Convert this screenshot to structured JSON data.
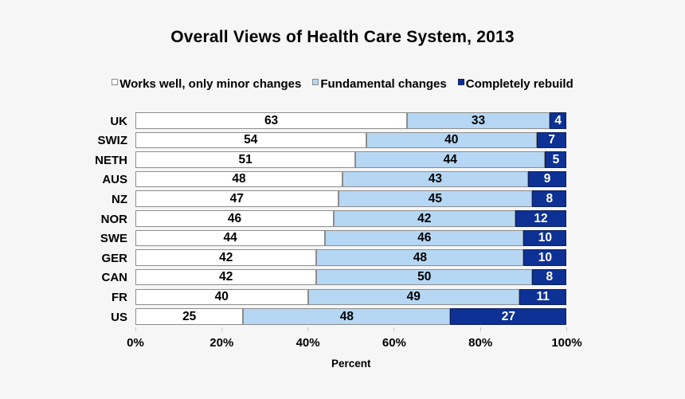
{
  "page": {
    "background_color": "#f6f6f6"
  },
  "chart_data": {
    "type": "bar",
    "stacked": true,
    "orientation": "horizontal",
    "title": "Overall Views of Health Care System, 2013",
    "xlabel": "Percent",
    "xlim": [
      0,
      100
    ],
    "x_ticks": [
      "0%",
      "20%",
      "40%",
      "60%",
      "80%",
      "100%"
    ],
    "grid": false,
    "legend_position": "top",
    "value_labels": "inside-center",
    "categories": [
      "UK",
      "SWIZ",
      "NETH",
      "AUS",
      "NZ",
      "NOR",
      "SWE",
      "GER",
      "CAN",
      "FR",
      "US"
    ],
    "series": [
      {
        "name": "Works well, only minor changes",
        "color": "#ffffff",
        "border_color": "#8c8c8c",
        "label_color": "#000000",
        "values": [
          63,
          54,
          51,
          48,
          47,
          46,
          44,
          42,
          42,
          40,
          25
        ]
      },
      {
        "name": "Fundamental changes",
        "color": "#b6d7f4",
        "border_color": "#8c8c8c",
        "label_color": "#000000",
        "values": [
          33,
          40,
          44,
          43,
          45,
          42,
          46,
          48,
          50,
          49,
          48
        ]
      },
      {
        "name": "Completely rebuild",
        "color": "#0d3194",
        "border_color": "#0a2060",
        "label_color": "#ffffff",
        "values": [
          4,
          7,
          5,
          9,
          8,
          12,
          10,
          10,
          8,
          11,
          27
        ]
      }
    ]
  }
}
